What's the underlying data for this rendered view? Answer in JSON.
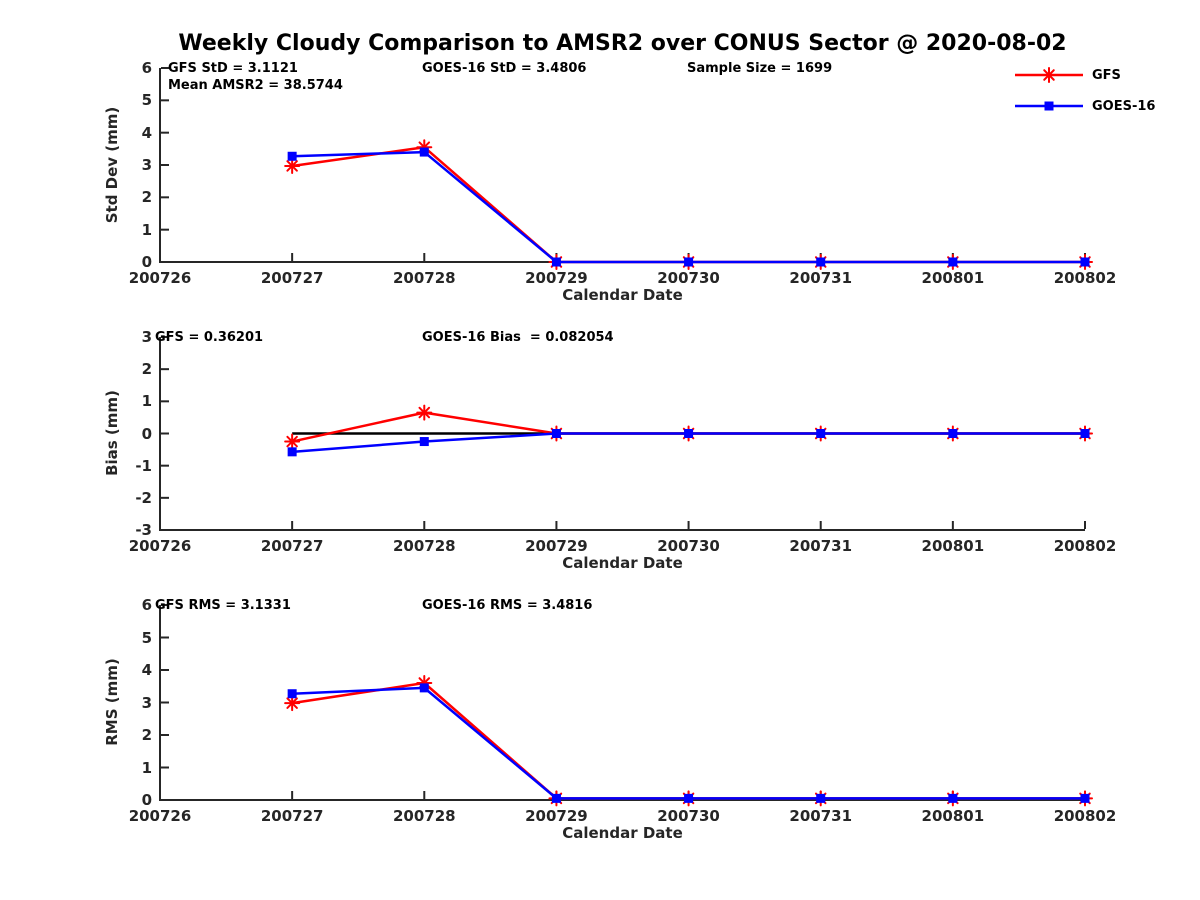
{
  "title": "Weekly Cloudy Comparison to AMSR2 over CONUS Sector @ 2020-08-02",
  "colors": {
    "gfs": "#ff0000",
    "goes16": "#0000ff",
    "axis": "#262626",
    "zero_line": "#000000",
    "background": "#ffffff"
  },
  "x_axis": {
    "label": "Calendar Date",
    "categories": [
      "200726",
      "200727",
      "200728",
      "200729",
      "200730",
      "200731",
      "200801",
      "200802"
    ]
  },
  "legend": {
    "items": [
      {
        "label": "GFS",
        "marker": "asterisk",
        "color": "#ff0000"
      },
      {
        "label": "GOES-16",
        "marker": "square",
        "color": "#0000ff"
      }
    ]
  },
  "chart_data": [
    {
      "type": "line",
      "ylabel": "Std Dev (mm)",
      "ylim": [
        0,
        6
      ],
      "yticks": [
        0,
        1,
        2,
        3,
        4,
        5,
        6
      ],
      "x": [
        "200727",
        "200728",
        "200729",
        "200730",
        "200731",
        "200801",
        "200802"
      ],
      "zero_line": false,
      "series": [
        {
          "name": "GFS",
          "color": "#ff0000",
          "marker": "asterisk",
          "values": [
            2.97,
            3.55,
            0,
            0,
            0,
            0,
            0
          ]
        },
        {
          "name": "GOES-16",
          "color": "#0000ff",
          "marker": "square",
          "values": [
            3.27,
            3.4,
            0,
            0,
            0,
            0,
            0
          ]
        }
      ],
      "annotations": [
        {
          "text": "GFS StD = 3.1121",
          "col": 0,
          "row": 0
        },
        {
          "text": "Mean AMSR2 = 38.5744",
          "col": 0,
          "row": 1
        },
        {
          "text": "GOES-16 StD = 3.4806",
          "col": 1,
          "row": 0
        },
        {
          "text": "Sample Size = 1699",
          "col": 2,
          "row": 0
        }
      ]
    },
    {
      "type": "line",
      "ylabel": "Bias (mm)",
      "ylim": [
        -3,
        3
      ],
      "yticks": [
        -3,
        -2,
        -1,
        0,
        1,
        2,
        3
      ],
      "x": [
        "200727",
        "200728",
        "200729",
        "200730",
        "200731",
        "200801",
        "200802"
      ],
      "zero_line": true,
      "series": [
        {
          "name": "GFS",
          "color": "#ff0000",
          "marker": "asterisk",
          "values": [
            -0.25,
            0.65,
            0,
            0,
            0,
            0,
            0
          ]
        },
        {
          "name": "GOES-16",
          "color": "#0000ff",
          "marker": "square",
          "values": [
            -0.57,
            -0.25,
            0,
            0,
            0,
            0,
            0
          ]
        }
      ],
      "annotations": [
        {
          "text": "GFS = 0.36201",
          "col": 0,
          "row": 0
        },
        {
          "text": "GOES-16 Bias  = 0.082054",
          "col": 1,
          "row": 0
        }
      ]
    },
    {
      "type": "line",
      "ylabel": "RMS (mm)",
      "ylim": [
        0,
        6
      ],
      "yticks": [
        0,
        1,
        2,
        3,
        4,
        5,
        6
      ],
      "x": [
        "200727",
        "200728",
        "200729",
        "200730",
        "200731",
        "200801",
        "200802"
      ],
      "zero_line": false,
      "series": [
        {
          "name": "GFS",
          "color": "#ff0000",
          "marker": "asterisk",
          "values": [
            2.98,
            3.6,
            0.05,
            0.05,
            0.05,
            0.05,
            0.05
          ]
        },
        {
          "name": "GOES-16",
          "color": "#0000ff",
          "marker": "square",
          "values": [
            3.27,
            3.45,
            0.05,
            0.05,
            0.05,
            0.05,
            0.05
          ]
        }
      ],
      "annotations": [
        {
          "text": "GFS RMS = 3.1331",
          "col": 0,
          "row": 0
        },
        {
          "text": "GOES-16 RMS = 3.4816",
          "col": 1,
          "row": 0
        }
      ]
    }
  ]
}
